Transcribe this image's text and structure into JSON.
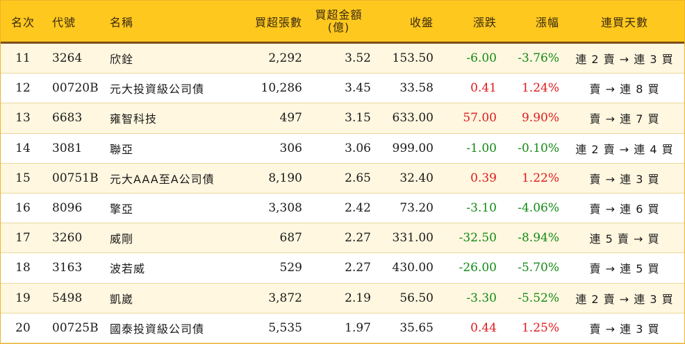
{
  "header": {
    "rank": "名次",
    "code": "代號",
    "name": "名稱",
    "volume": "買超張數",
    "amount_line1": "買超金額",
    "amount_line2": "(億)",
    "close": "收盤",
    "change": "漲跌",
    "change_pct": "漲幅",
    "streak": "連買天數"
  },
  "rows": [
    {
      "rank": "11",
      "code": "3264",
      "name": "欣銓",
      "volume": "2,292",
      "amount": "3.52",
      "close": "153.50",
      "change": "-6.00",
      "change_pct": "-3.76%",
      "streak": "連 2 賣 → 連 3 買",
      "direction": "down"
    },
    {
      "rank": "12",
      "code": "00720B",
      "name": "元大投資級公司債",
      "volume": "10,286",
      "amount": "3.45",
      "close": "33.58",
      "change": "0.41",
      "change_pct": "1.24%",
      "streak": "賣 → 連 8 買",
      "direction": "up"
    },
    {
      "rank": "13",
      "code": "6683",
      "name": "雍智科技",
      "volume": "497",
      "amount": "3.15",
      "close": "633.00",
      "change": "57.00",
      "change_pct": "9.90%",
      "streak": "賣 → 連 7 買",
      "direction": "up"
    },
    {
      "rank": "14",
      "code": "3081",
      "name": "聯亞",
      "volume": "306",
      "amount": "3.06",
      "close": "999.00",
      "change": "-1.00",
      "change_pct": "-0.10%",
      "streak": "連 2 賣 → 連 4 買",
      "direction": "down"
    },
    {
      "rank": "15",
      "code": "00751B",
      "name": "元大AAA至A公司債",
      "volume": "8,190",
      "amount": "2.65",
      "close": "32.40",
      "change": "0.39",
      "change_pct": "1.22%",
      "streak": "賣 → 連 3 買",
      "direction": "up"
    },
    {
      "rank": "16",
      "code": "8096",
      "name": "擎亞",
      "volume": "3,308",
      "amount": "2.42",
      "close": "73.20",
      "change": "-3.10",
      "change_pct": "-4.06%",
      "streak": "賣 → 連 6 買",
      "direction": "down"
    },
    {
      "rank": "17",
      "code": "3260",
      "name": "威剛",
      "volume": "687",
      "amount": "2.27",
      "close": "331.00",
      "change": "-32.50",
      "change_pct": "-8.94%",
      "streak": "連 5 賣 → 買",
      "direction": "down"
    },
    {
      "rank": "18",
      "code": "3163",
      "name": "波若威",
      "volume": "529",
      "amount": "2.27",
      "close": "430.00",
      "change": "-26.00",
      "change_pct": "-5.70%",
      "streak": "賣 → 連 5 買",
      "direction": "down"
    },
    {
      "rank": "19",
      "code": "5498",
      "name": "凱崴",
      "volume": "3,872",
      "amount": "2.19",
      "close": "56.50",
      "change": "-3.30",
      "change_pct": "-5.52%",
      "streak": "連 2 賣 → 連 3 買",
      "direction": "down"
    },
    {
      "rank": "20",
      "code": "00725B",
      "name": "國泰投資級公司債",
      "volume": "5,535",
      "amount": "1.97",
      "close": "35.65",
      "change": "0.44",
      "change_pct": "1.25%",
      "streak": "賣 → 連 3 買",
      "direction": "up"
    }
  ],
  "colors": {
    "header_bg": "#ffc81e",
    "header_rule": "#7d4e1a",
    "row_alt_bg": "#fff7e0",
    "up": "#e0191e",
    "down": "#138a14"
  }
}
